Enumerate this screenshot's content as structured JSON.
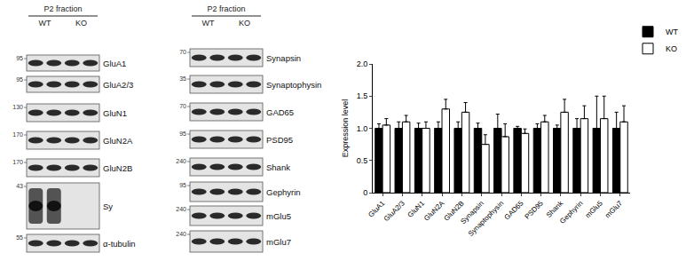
{
  "blots": [
    {
      "header": "P2 fraction",
      "lanes": [
        "WT",
        "KO"
      ],
      "rows": [
        {
          "label": "GluA1",
          "mw": "95"
        },
        {
          "label": "GluA2/3",
          "mw": "95"
        },
        {
          "label": "GluN1",
          "mw": "130"
        },
        {
          "label": "GluN2A",
          "mw": "170"
        },
        {
          "label": "GluN2B",
          "mw": "170"
        },
        {
          "label": "Sy",
          "mw": "43"
        },
        {
          "label": "α-tubulin",
          "mw": "55"
        }
      ]
    },
    {
      "header": "P2 fraction",
      "lanes": [
        "WT",
        "KO"
      ],
      "rows": [
        {
          "label": "Synapsin",
          "mw": "70"
        },
        {
          "label": "Synaptophysin",
          "mw": "35"
        },
        {
          "label": "GAD65",
          "mw": "70"
        },
        {
          "label": "PSD95",
          "mw": "95"
        },
        {
          "label": "Shank",
          "mw": "240"
        },
        {
          "label": "Gephyrin",
          "mw": "95"
        },
        {
          "label": "mGlu5",
          "mw": "240"
        },
        {
          "label": "mGlu7",
          "mw": "240"
        }
      ]
    }
  ],
  "chart_data": {
    "type": "bar",
    "y_label": "Expression level",
    "categories": [
      "GluA1",
      "GluA2/3",
      "GluN1",
      "GluN2A",
      "GluN2B",
      "Synapsin",
      "Synaptophysin",
      "GAD65",
      "PSD95",
      "Shank",
      "Gephyrin",
      "mGlu5",
      "mGlu7"
    ],
    "series": [
      {
        "name": "WT",
        "color": "#000000",
        "values": [
          1.0,
          1.0,
          1.0,
          1.0,
          1.0,
          1.0,
          1.0,
          1.0,
          1.0,
          1.0,
          1.0,
          1.0,
          1.0
        ],
        "errors": [
          0.07,
          0.1,
          0.08,
          0.1,
          0.1,
          0.08,
          0.22,
          0.03,
          0.07,
          0.05,
          0.15,
          0.5,
          0.25
        ]
      },
      {
        "name": "KO",
        "color": "#ffffff",
        "values": [
          1.05,
          1.1,
          1.0,
          1.3,
          1.25,
          0.75,
          0.87,
          0.92,
          1.1,
          1.25,
          1.15,
          1.15,
          1.1
        ],
        "errors": [
          0.1,
          0.1,
          0.1,
          0.15,
          0.15,
          0.15,
          0.2,
          0.07,
          0.1,
          0.2,
          0.2,
          0.35,
          0.25
        ]
      }
    ],
    "ylim": [
      0,
      2.0
    ],
    "yticks": [
      0,
      0.5,
      {
        "value": 1.0,
        "label": "1.0"
      },
      1.5,
      {
        "value": 2.0,
        "label": "2.0"
      }
    ],
    "grid": false,
    "legend": "top right"
  }
}
